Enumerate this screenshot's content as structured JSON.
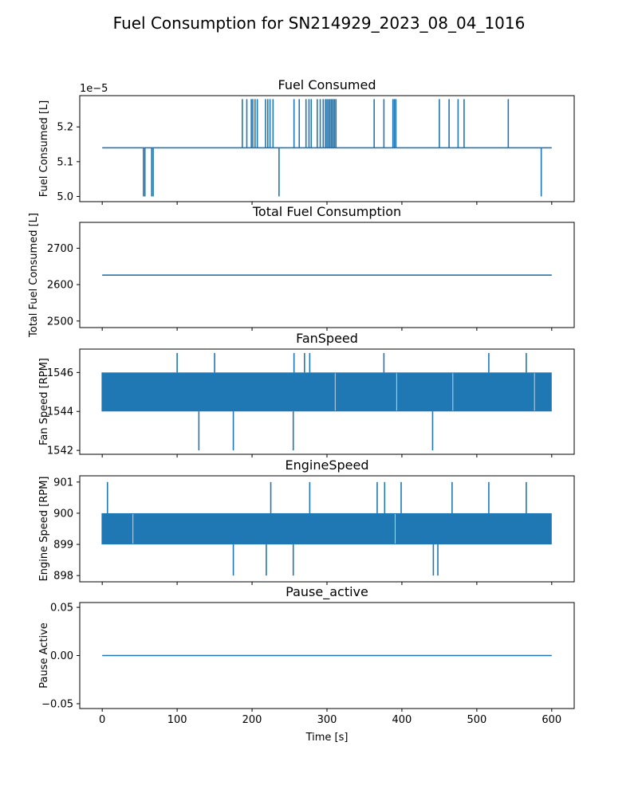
{
  "chart_data": {
    "title": "Fuel Consumption for SN214929_2023_08_04_1016",
    "xlabel": "Time [s]",
    "xlim": [
      -30,
      630
    ],
    "xticks": [
      0,
      100,
      200,
      300,
      400,
      500,
      600
    ],
    "series_color": "#1f77b4",
    "subplots": [
      {
        "type": "line",
        "title": "Fuel Consumed",
        "ylabel": "Fuel Consumed [L]",
        "offset_label": "1e−5",
        "ylim": [
          4.985,
          5.29
        ],
        "yticks": [
          5.0,
          5.1,
          5.2
        ],
        "ytick_labels": [
          "5.0",
          "5.1",
          "5.2"
        ],
        "baseline": 5.14,
        "x_range": [
          0,
          600
        ],
        "spikes_up": {
          "value": 5.28,
          "x": [
            187,
            193,
            199,
            201,
            204,
            207,
            218,
            221,
            224,
            228,
            256,
            263,
            272,
            276,
            279,
            287,
            291,
            295,
            298,
            300,
            302,
            304,
            306,
            308,
            310,
            312,
            363,
            376,
            388,
            390,
            392,
            450,
            463,
            475,
            483,
            542
          ]
        },
        "spikes_down": {
          "value": 5.0,
          "x": [
            55,
            57,
            66,
            68,
            236,
            586
          ]
        }
      },
      {
        "type": "line",
        "title": "Total Fuel Consumption",
        "ylabel": "Total Fuel Consumed [L]",
        "ylim": [
          2482,
          2771
        ],
        "yticks": [
          2500,
          2600,
          2700
        ],
        "ytick_labels": [
          "2500",
          "2600",
          "2700"
        ],
        "x": [
          0,
          600
        ],
        "y": [
          2626,
          2626
        ]
      },
      {
        "type": "line",
        "title": "FanSpeed",
        "ylabel": "Fan Speed [RPM]",
        "ylim": [
          1541.8,
          1547.2
        ],
        "yticks": [
          1542,
          1544,
          1546
        ],
        "ytick_labels": [
          "1542",
          "1544",
          "1546"
        ],
        "band": [
          1544,
          1546
        ],
        "x_range": [
          0,
          600
        ],
        "band_gaps_x": [
          311,
          393,
          468,
          577
        ],
        "spikes_up": {
          "value": 1547,
          "x": [
            100,
            150,
            256,
            270,
            277,
            376,
            516,
            566
          ]
        },
        "spikes_down": {
          "value": 1542,
          "x": [
            129,
            175,
            255,
            441
          ]
        }
      },
      {
        "type": "line",
        "title": "EngineSpeed",
        "ylabel": "Engine Speed [RPM]",
        "ylim": [
          897.8,
          901.2
        ],
        "yticks": [
          898,
          899,
          900,
          901
        ],
        "ytick_labels": [
          "898",
          "899",
          "900",
          "901"
        ],
        "band": [
          899,
          900
        ],
        "x_range": [
          0,
          600
        ],
        "band_gaps_x": [
          41,
          391
        ],
        "spikes_up": {
          "value": 901,
          "x": [
            7,
            225,
            277,
            367,
            377,
            399,
            467,
            516,
            566
          ]
        },
        "spikes_down": {
          "value": 898,
          "x": [
            175,
            219,
            255,
            442,
            448
          ]
        }
      },
      {
        "type": "line",
        "title": "Pause_active",
        "ylabel": "Pause Active",
        "ylim": [
          -0.055,
          0.055
        ],
        "yticks": [
          -0.05,
          0.0,
          0.05
        ],
        "ytick_labels": [
          "−0.05",
          "0.00",
          "0.05"
        ],
        "x": [
          0,
          600
        ],
        "y": [
          0,
          0
        ]
      }
    ]
  }
}
